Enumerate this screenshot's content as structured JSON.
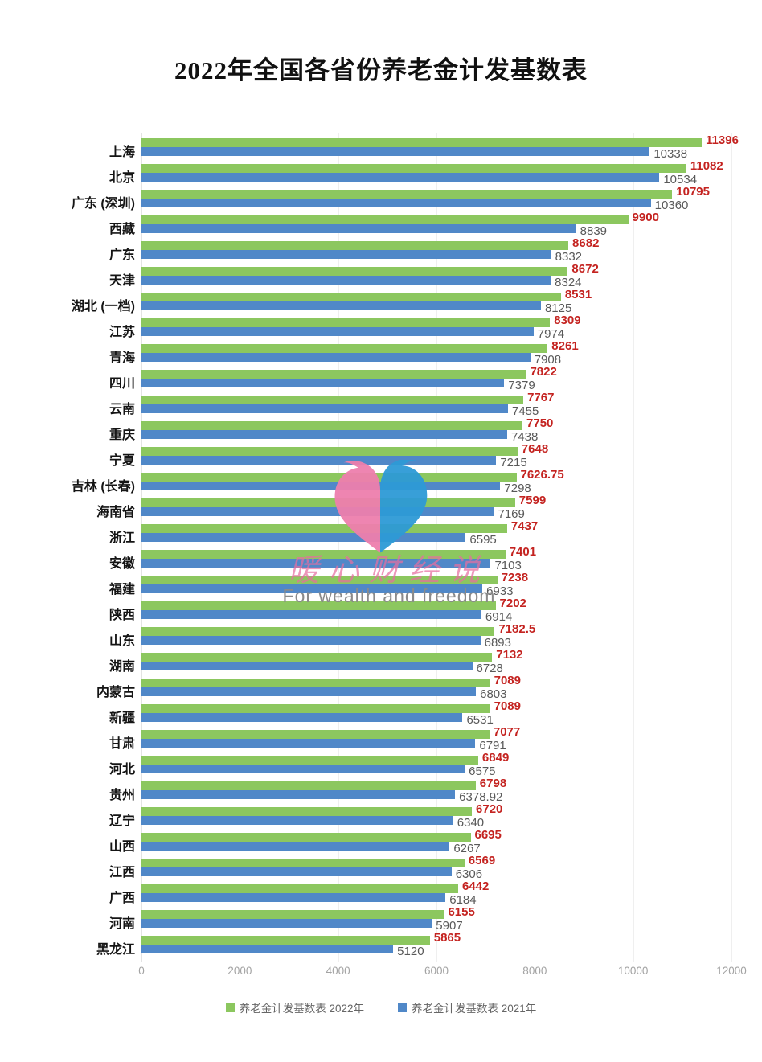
{
  "title": "2022年全国各省份养老金计发基数表",
  "watermark": {
    "brand_cn": "暖心财经说",
    "brand_en": "For wealth and freedom",
    "heart_icon": "twin-doves-heart-logo",
    "pink": "#ee7fad",
    "blue": "#2e9ad6"
  },
  "colors": {
    "bar_2022": "#8cc75f",
    "bar_2021": "#5088c8",
    "value_label_2022": "#c42320",
    "value_label_2021": "#595959",
    "axis_text": "#a3a3a3",
    "gridline": "#efefef",
    "category_text": "#141414",
    "background": "#ffffff"
  },
  "legend": {
    "items": [
      {
        "label": "养老金计发基数表 2022年",
        "color": "#8cc75f"
      },
      {
        "label": "养老金计发基数表 2021年",
        "color": "#5088c8"
      }
    ]
  },
  "chart_data": {
    "type": "bar",
    "orientation": "horizontal",
    "title": "2022年全国各省份养老金计发基数表",
    "xlabel": "",
    "ylabel": "",
    "xlim": [
      0,
      12000
    ],
    "xticks": [
      0,
      2000,
      4000,
      6000,
      8000,
      10000,
      12000
    ],
    "grid": true,
    "legend_position": "bottom",
    "categories": [
      "上海",
      "北京",
      "广东 (深圳)",
      "西藏",
      "广东",
      "天津",
      "湖北 (一档)",
      "江苏",
      "青海",
      "四川",
      "云南",
      "重庆",
      "宁夏",
      "吉林 (长春)",
      "海南省",
      "浙江",
      "安徽",
      "福建",
      "陕西",
      "山东",
      "湖南",
      "内蒙古",
      "新疆",
      "甘肃",
      "河北",
      "贵州",
      "辽宁",
      "山西",
      "江西",
      "广西",
      "河南",
      "黑龙江"
    ],
    "series": [
      {
        "name": "养老金计发基数表 2022年",
        "values": [
          11396,
          11082,
          10795,
          9900,
          8682,
          8672,
          8531,
          8309,
          8261,
          7822,
          7767,
          7750,
          7648,
          7626.75,
          7599,
          7437,
          7401,
          7238,
          7202,
          7182.5,
          7132,
          7089,
          7089,
          7077,
          6849,
          6798,
          6720,
          6695,
          6569,
          6442,
          6155,
          5865
        ]
      },
      {
        "name": "养老金计发基数表 2021年",
        "values": [
          10338,
          10534,
          10360,
          8839,
          8332,
          8324,
          8125,
          7974,
          7908,
          7379,
          7455,
          7438,
          7215,
          7298,
          7169,
          6595,
          7103,
          6933,
          6914,
          6893,
          6728,
          6803,
          6531,
          6791,
          6575,
          6378.92,
          6340,
          6267,
          6306,
          6184,
          5907,
          5120
        ]
      }
    ]
  }
}
